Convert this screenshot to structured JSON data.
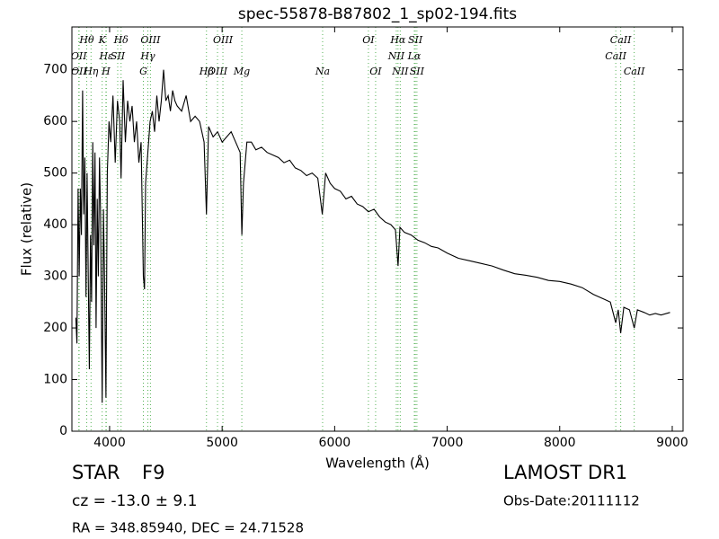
{
  "chart_data": {
    "type": "line",
    "title": "spec-55878-B87802_1_sp02-194.fits",
    "xlabel": "Wavelength (Å)",
    "ylabel": "Flux (relative)",
    "xlim": [
      3665,
      9096
    ],
    "ylim": [
      0,
      783
    ],
    "xticks": [
      4000,
      5000,
      6000,
      7000,
      8000,
      9000
    ],
    "yticks": [
      0,
      100,
      200,
      300,
      400,
      500,
      600,
      700
    ],
    "color": "#000000",
    "line_color": "#2ca02c",
    "x": [
      3700,
      3710,
      3720,
      3730,
      3740,
      3750,
      3760,
      3770,
      3780,
      3790,
      3800,
      3810,
      3820,
      3830,
      3840,
      3850,
      3860,
      3870,
      3880,
      3890,
      3900,
      3910,
      3920,
      3934,
      3945,
      3955,
      3968,
      3980,
      3995,
      4010,
      4030,
      4050,
      4070,
      4090,
      4102,
      4120,
      4140,
      4160,
      4180,
      4200,
      4220,
      4240,
      4260,
      4280,
      4300,
      4310,
      4320,
      4340,
      4360,
      4380,
      4400,
      4420,
      4440,
      4460,
      4480,
      4500,
      4520,
      4540,
      4560,
      4580,
      4600,
      4640,
      4680,
      4720,
      4760,
      4800,
      4840,
      4861,
      4880,
      4920,
      4960,
      5000,
      5040,
      5080,
      5120,
      5160,
      5175,
      5190,
      5220,
      5260,
      5300,
      5350,
      5400,
      5450,
      5500,
      5550,
      5600,
      5650,
      5700,
      5750,
      5800,
      5850,
      5890,
      5920,
      5960,
      6000,
      6050,
      6100,
      6150,
      6200,
      6250,
      6300,
      6350,
      6400,
      6450,
      6500,
      6540,
      6563,
      6580,
      6620,
      6680,
      6740,
      6800,
      6860,
      6920,
      7000,
      7100,
      7200,
      7300,
      7400,
      7500,
      7600,
      7700,
      7800,
      7900,
      8000,
      8100,
      8200,
      8300,
      8400,
      8450,
      8498,
      8520,
      8542,
      8570,
      8620,
      8662,
      8690,
      8750,
      8800,
      8850,
      8900,
      8980
    ],
    "values": [
      220,
      170,
      470,
      300,
      470,
      380,
      660,
      420,
      530,
      260,
      500,
      300,
      120,
      380,
      250,
      560,
      360,
      540,
      200,
      450,
      300,
      530,
      420,
      55,
      430,
      300,
      65,
      500,
      600,
      560,
      650,
      520,
      640,
      600,
      490,
      680,
      560,
      640,
      600,
      630,
      560,
      600,
      520,
      560,
      300,
      275,
      480,
      540,
      600,
      620,
      580,
      650,
      600,
      640,
      700,
      640,
      650,
      620,
      660,
      640,
      630,
      620,
      650,
      600,
      610,
      600,
      560,
      420,
      590,
      570,
      580,
      560,
      570,
      580,
      560,
      540,
      380,
      480,
      560,
      560,
      545,
      550,
      540,
      535,
      530,
      520,
      525,
      510,
      505,
      495,
      500,
      490,
      420,
      500,
      480,
      470,
      465,
      450,
      455,
      440,
      435,
      425,
      430,
      415,
      405,
      400,
      390,
      320,
      395,
      385,
      380,
      370,
      365,
      358,
      355,
      345,
      335,
      330,
      325,
      320,
      312,
      305,
      302,
      298,
      292,
      290,
      285,
      278,
      265,
      255,
      250,
      210,
      235,
      190,
      240,
      235,
      200,
      235,
      230,
      225,
      228,
      225,
      230
    ],
    "lines": [
      {
        "name": "Hθ",
        "x": 3797,
        "row": 1
      },
      {
        "name": "K",
        "x": 3934,
        "row": 1
      },
      {
        "name": "Hδ",
        "x": 4102,
        "row": 1
      },
      {
        "name": "OIII",
        "x": 4363,
        "row": 1
      },
      {
        "name": "OIII",
        "x": 5007,
        "row": 1
      },
      {
        "name": "OI",
        "x": 6300,
        "row": 1
      },
      {
        "name": "Hα",
        "x": 6563,
        "row": 1
      },
      {
        "name": "SII",
        "x": 6717,
        "row": 1
      },
      {
        "name": "CaII",
        "x": 8542,
        "row": 1
      },
      {
        "name": "OII",
        "x": 3727,
        "row": 2
      },
      {
        "name": "Hε",
        "x": 3970,
        "row": 2
      },
      {
        "name": "SII",
        "x": 4072,
        "row": 2
      },
      {
        "name": "Hγ",
        "x": 4340,
        "row": 2
      },
      {
        "name": "NII",
        "x": 6548,
        "row": 2
      },
      {
        "name": "Lα",
        "x": 6708,
        "row": 2
      },
      {
        "name": "CaII",
        "x": 8498,
        "row": 2
      },
      {
        "name": "OII",
        "x": 3729,
        "row": 3
      },
      {
        "name": "Hη",
        "x": 3835,
        "row": 3
      },
      {
        "name": "H",
        "x": 3968,
        "row": 3
      },
      {
        "name": "G",
        "x": 4300,
        "row": 3
      },
      {
        "name": "Hβ",
        "x": 4861,
        "row": 3
      },
      {
        "name": "OIII",
        "x": 4959,
        "row": 3
      },
      {
        "name": "Mg",
        "x": 5175,
        "row": 3
      },
      {
        "name": "Na",
        "x": 5893,
        "row": 3
      },
      {
        "name": "OI",
        "x": 6364,
        "row": 3
      },
      {
        "name": "NII",
        "x": 6583,
        "row": 3
      },
      {
        "name": "SII",
        "x": 6731,
        "row": 3
      },
      {
        "name": "CaII",
        "x": 8662,
        "row": 3
      }
    ],
    "object_class": "STAR",
    "subclass": "F9",
    "redshift": "cz = -13.0 ± 9.1",
    "coords": "RA = 348.85940, DEC = 24.71528",
    "survey": "LAMOST DR1",
    "obs_date": "Obs-Date:20111112"
  }
}
